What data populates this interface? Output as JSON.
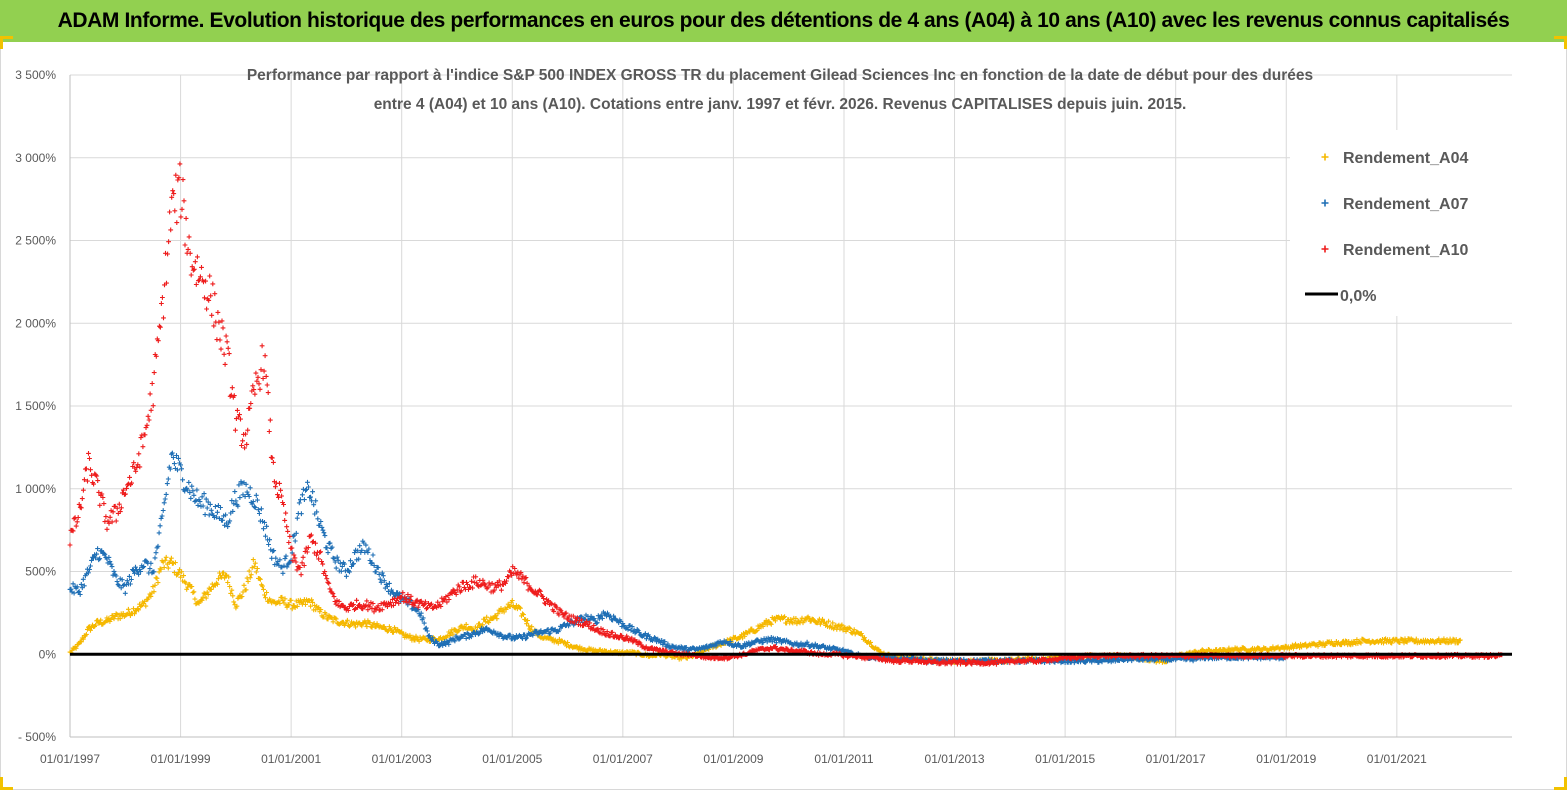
{
  "header": {
    "title": "ADAM Informe. Evolution historique des performances en euros pour des détentions de 4 ans (A04) à 10 ans (A10) avec les revenus connus capitalisés"
  },
  "chart_data": {
    "type": "scatter",
    "title_lines": [
      "Performance par rapport à l'indice S&P 500 INDEX GROSS TR  du placement Gilead Sciences Inc en fonction de la date de début pour des durées",
      "entre 4 (A04) et 10 ans (A10). Cotations entre janv. 1997 et févr. 2026. Revenus CAPITALISES depuis juin. 2015."
    ],
    "y_ticks": [
      "3 500%",
      "3 000%",
      "2 500%",
      "2 000%",
      "1 500%",
      "1 000%",
      "500%",
      "0%",
      "- 500%"
    ],
    "x_ticks": [
      "01/01/1997",
      "01/01/1999",
      "01/01/2001",
      "01/01/2003",
      "01/01/2005",
      "01/01/2007",
      "01/01/2009",
      "01/01/2011",
      "01/01/2013",
      "01/01/2015",
      "01/01/2017",
      "01/01/2019",
      "01/01/2021"
    ],
    "ylim": [
      -500,
      3500
    ],
    "xlim": [
      "1997-01-01",
      "2023-02-01"
    ],
    "grid": true,
    "legend_position": "top-right",
    "legend": [
      "Rendement_A04",
      "Rendement_A07",
      "Rendement_A10",
      "0,0%"
    ],
    "series": [
      {
        "name": "Rendement_A04",
        "color": "#f5b800",
        "x_start": "1997-01-01",
        "x_end": "2022-03-01",
        "x_step_months": 2,
        "values": [
          10,
          60,
          150,
          190,
          200,
          230,
          240,
          270,
          300,
          380,
          540,
          550,
          480,
          400,
          300,
          380,
          450,
          480,
          300,
          400,
          550,
          380,
          310,
          320,
          300,
          300,
          320,
          260,
          220,
          200,
          190,
          180,
          190,
          170,
          160,
          150,
          120,
          100,
          90,
          90,
          90,
          120,
          150,
          170,
          150,
          200,
          220,
          270,
          300,
          250,
          160,
          110,
          90,
          80,
          60,
          40,
          30,
          20,
          20,
          10,
          10,
          10,
          0,
          -10,
          0,
          -10,
          -20,
          -20,
          0,
          30,
          50,
          70,
          90,
          110,
          140,
          170,
          200,
          210,
          210,
          200,
          220,
          200,
          190,
          170,
          160,
          140,
          110,
          60,
          10,
          -10,
          -20,
          -20,
          -30,
          -30,
          -40,
          -40,
          -40,
          -40,
          -40,
          -40,
          -40,
          -40,
          -40,
          -30,
          -30,
          -30,
          -30,
          -20,
          -20,
          -20,
          -10,
          -10,
          -10,
          -10,
          -10,
          -10,
          -20,
          -30,
          -40,
          -40,
          -10,
          0,
          10,
          20,
          20,
          20,
          30,
          30,
          30,
          30,
          30,
          40,
          40,
          50,
          50,
          60,
          60,
          70,
          70,
          70,
          80,
          80,
          80,
          80,
          80,
          80,
          80,
          80,
          80,
          80,
          80,
          80
        ]
      },
      {
        "name": "Rendement_A07",
        "color": "#1f6fb5",
        "x_start": "1997-01-01",
        "x_end": "2019-01-01",
        "x_step_months": 2,
        "values": [
          400,
          380,
          500,
          620,
          580,
          450,
          400,
          500,
          550,
          500,
          800,
          1200,
          1100,
          1000,
          920,
          900,
          850,
          800,
          950,
          1000,
          950,
          800,
          600,
          520,
          600,
          900,
          1000,
          800,
          650,
          550,
          500,
          600,
          650,
          550,
          450,
          380,
          330,
          300,
          250,
          100,
          60,
          70,
          100,
          110,
          130,
          150,
          140,
          110,
          100,
          100,
          120,
          130,
          140,
          150,
          180,
          200,
          220,
          200,
          250,
          220,
          180,
          150,
          120,
          100,
          80,
          50,
          40,
          30,
          30,
          40,
          60,
          80,
          60,
          50,
          70,
          80,
          90,
          80,
          70,
          60,
          60,
          50,
          40,
          30,
          20,
          0,
          -10,
          -20,
          -20,
          -20,
          -30,
          -30,
          -30,
          -40,
          -40,
          -40,
          -40,
          -40,
          -40,
          -40,
          -40,
          -40,
          -40,
          -40,
          -40,
          -40,
          -40,
          -40,
          -40,
          -40,
          -40,
          -40,
          -40,
          -40,
          -30,
          -30,
          -30,
          -30,
          -30,
          -30,
          -30,
          -30,
          -30,
          -20,
          -20,
          -20,
          -20,
          -20,
          -20,
          -20,
          -20,
          -20,
          -20
        ]
      },
      {
        "name": "Rendement_A10",
        "color": "#ee1c1c",
        "x_start": "1997-01-01",
        "x_end": "2022-12-01",
        "x_step_months": 2,
        "values": [
          700,
          850,
          1150,
          1000,
          800,
          850,
          1000,
          1100,
          1300,
          1600,
          2100,
          2700,
          2800,
          2400,
          2300,
          2200,
          2000,
          1800,
          1400,
          1300,
          1600,
          1800,
          1100,
          900,
          600,
          500,
          700,
          600,
          400,
          300,
          280,
          300,
          300,
          280,
          300,
          320,
          350,
          320,
          300,
          280,
          300,
          350,
          400,
          420,
          440,
          420,
          400,
          430,
          500,
          450,
          400,
          350,
          300,
          250,
          220,
          200,
          180,
          150,
          130,
          110,
          100,
          80,
          50,
          30,
          20,
          10,
          0,
          0,
          -10,
          -20,
          -20,
          -20,
          -10,
          0,
          20,
          30,
          40,
          30,
          20,
          20,
          10,
          0,
          0,
          0,
          -10,
          -10,
          -20,
          -20,
          -30,
          -40,
          -40,
          -40,
          -40,
          -50,
          -50,
          -50,
          -50,
          -50,
          -50,
          -50,
          -50,
          -50,
          -40,
          -40,
          -40,
          -40,
          -30,
          -30,
          -20,
          -20,
          -10,
          -10,
          -10,
          -10,
          -10,
          -10,
          -10,
          -10,
          -10,
          -10,
          -10,
          -10,
          -10,
          -10,
          -10,
          -10,
          -10,
          -10,
          -10,
          -10,
          -10,
          -10,
          -10,
          -10,
          -10,
          -10,
          -10,
          -10,
          -10,
          -10,
          -10,
          -10,
          -10,
          -10,
          -10,
          -10,
          -10,
          -10,
          -10,
          -10,
          -10,
          -10,
          -10,
          -10,
          -10,
          -10
        ]
      },
      {
        "name": "0,0%",
        "color": "#000000",
        "x_start": "1997-01-01",
        "x_end": "2023-02-01",
        "values": [
          0,
          0
        ]
      }
    ]
  }
}
